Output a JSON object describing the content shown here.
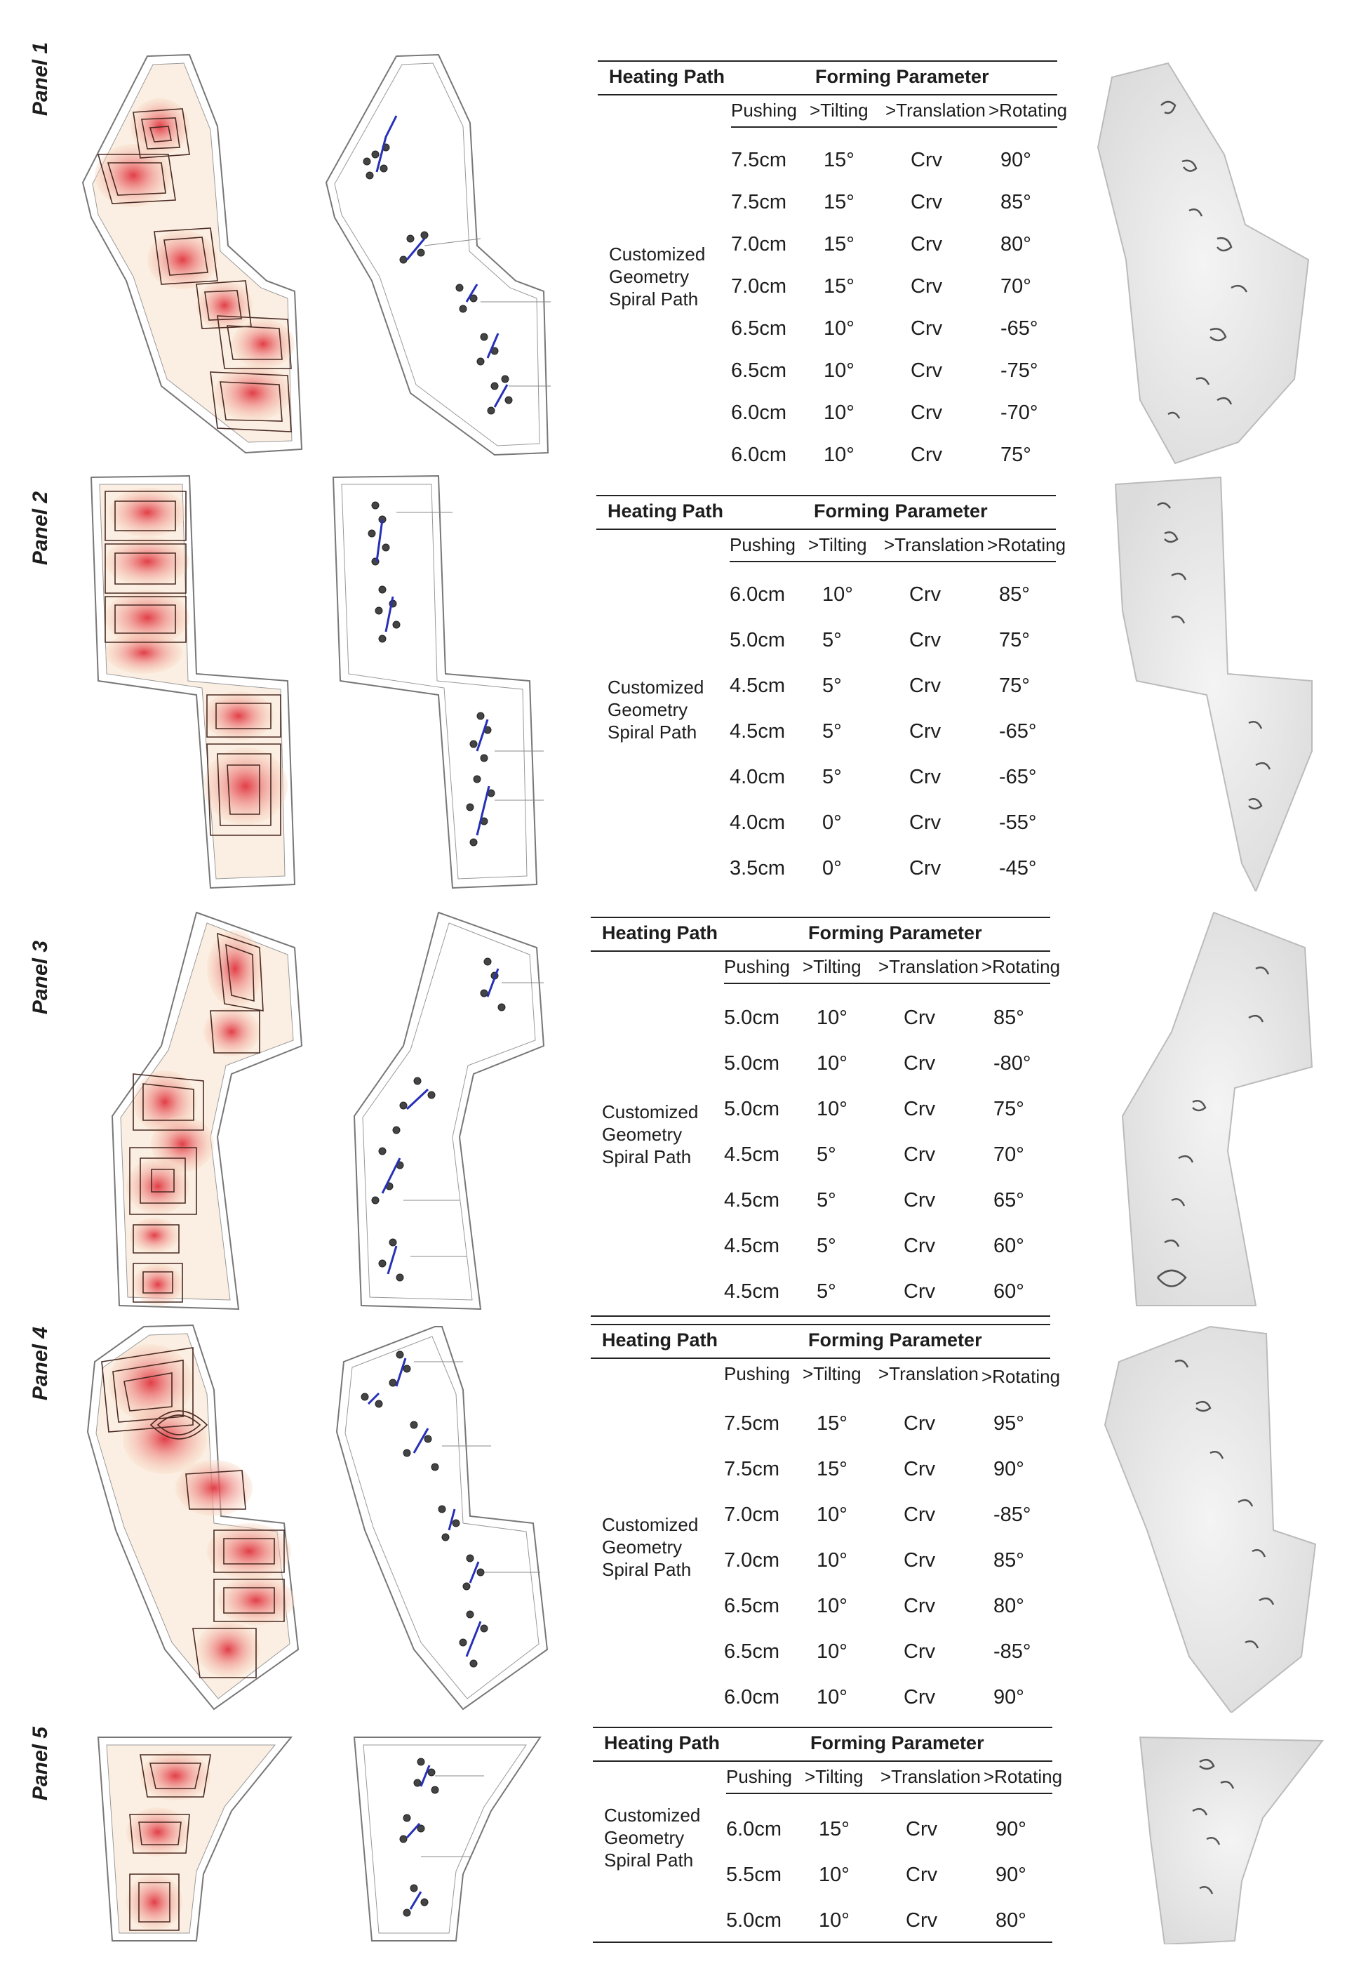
{
  "table_headers": {
    "heating_path": "Heating Path",
    "forming_parameter": "Forming Parameter",
    "pushing": "Pushing",
    "tilting": ">Tilting",
    "translation": ">Translation",
    "rotating": ">Rotating"
  },
  "heating_path_label": [
    "Customized",
    "Geometry",
    "Spiral Path"
  ],
  "panels": [
    {
      "label": "Panel 1",
      "rows": [
        [
          "7.5cm",
          "15°",
          "Crv",
          "90°"
        ],
        [
          "7.5cm",
          "15°",
          "Crv",
          "85°"
        ],
        [
          "7.0cm",
          "15°",
          "Crv",
          "80°"
        ],
        [
          "7.0cm",
          "15°",
          "Crv",
          "70°"
        ],
        [
          "6.5cm",
          "10°",
          "Crv",
          "-65°"
        ],
        [
          "6.5cm",
          "10°",
          "Crv",
          "-75°"
        ],
        [
          "6.0cm",
          "10°",
          "Crv",
          "-70°"
        ],
        [
          "6.0cm",
          "10°",
          "Crv",
          "75°"
        ]
      ]
    },
    {
      "label": "Panel 2",
      "rows": [
        [
          "6.0cm",
          "10°",
          "Crv",
          "85°"
        ],
        [
          "5.0cm",
          "5°",
          "Crv",
          "75°"
        ],
        [
          "4.5cm",
          "5°",
          "Crv",
          "75°"
        ],
        [
          "4.5cm",
          "5°",
          "Crv",
          "-65°"
        ],
        [
          "4.0cm",
          "5°",
          "Crv",
          "-65°"
        ],
        [
          "4.0cm",
          "0°",
          "Crv",
          "-55°"
        ],
        [
          "3.5cm",
          "0°",
          "Crv",
          "-45°"
        ]
      ]
    },
    {
      "label": "Panel 3",
      "rows": [
        [
          "5.0cm",
          "10°",
          "Crv",
          "85°"
        ],
        [
          "5.0cm",
          "10°",
          "Crv",
          "-80°"
        ],
        [
          "5.0cm",
          "10°",
          "Crv",
          "75°"
        ],
        [
          "4.5cm",
          "5°",
          "Crv",
          "70°"
        ],
        [
          "4.5cm",
          "5°",
          "Crv",
          "65°"
        ],
        [
          "4.5cm",
          "5°",
          "Crv",
          "60°"
        ],
        [
          "4.5cm",
          "5°",
          "Crv",
          "60°"
        ]
      ]
    },
    {
      "label": "Panel 4",
      "rows": [
        [
          "7.5cm",
          "15°",
          "Crv",
          "95°"
        ],
        [
          "7.5cm",
          "15°",
          "Crv",
          "90°"
        ],
        [
          "7.0cm",
          "10°",
          "Crv",
          "-85°"
        ],
        [
          "7.0cm",
          "10°",
          "Crv",
          "85°"
        ],
        [
          "6.5cm",
          "10°",
          "Crv",
          "80°"
        ],
        [
          "6.5cm",
          "10°",
          "Crv",
          "-85°"
        ],
        [
          "6.0cm",
          "10°",
          "Crv",
          "90°"
        ]
      ]
    },
    {
      "label": "Panel 5",
      "rows": [
        [
          "6.0cm",
          "15°",
          "Crv",
          "90°"
        ],
        [
          "5.5cm",
          "10°",
          "Crv",
          "90°"
        ],
        [
          "5.0cm",
          "10°",
          "Crv",
          "80°"
        ]
      ]
    }
  ]
}
